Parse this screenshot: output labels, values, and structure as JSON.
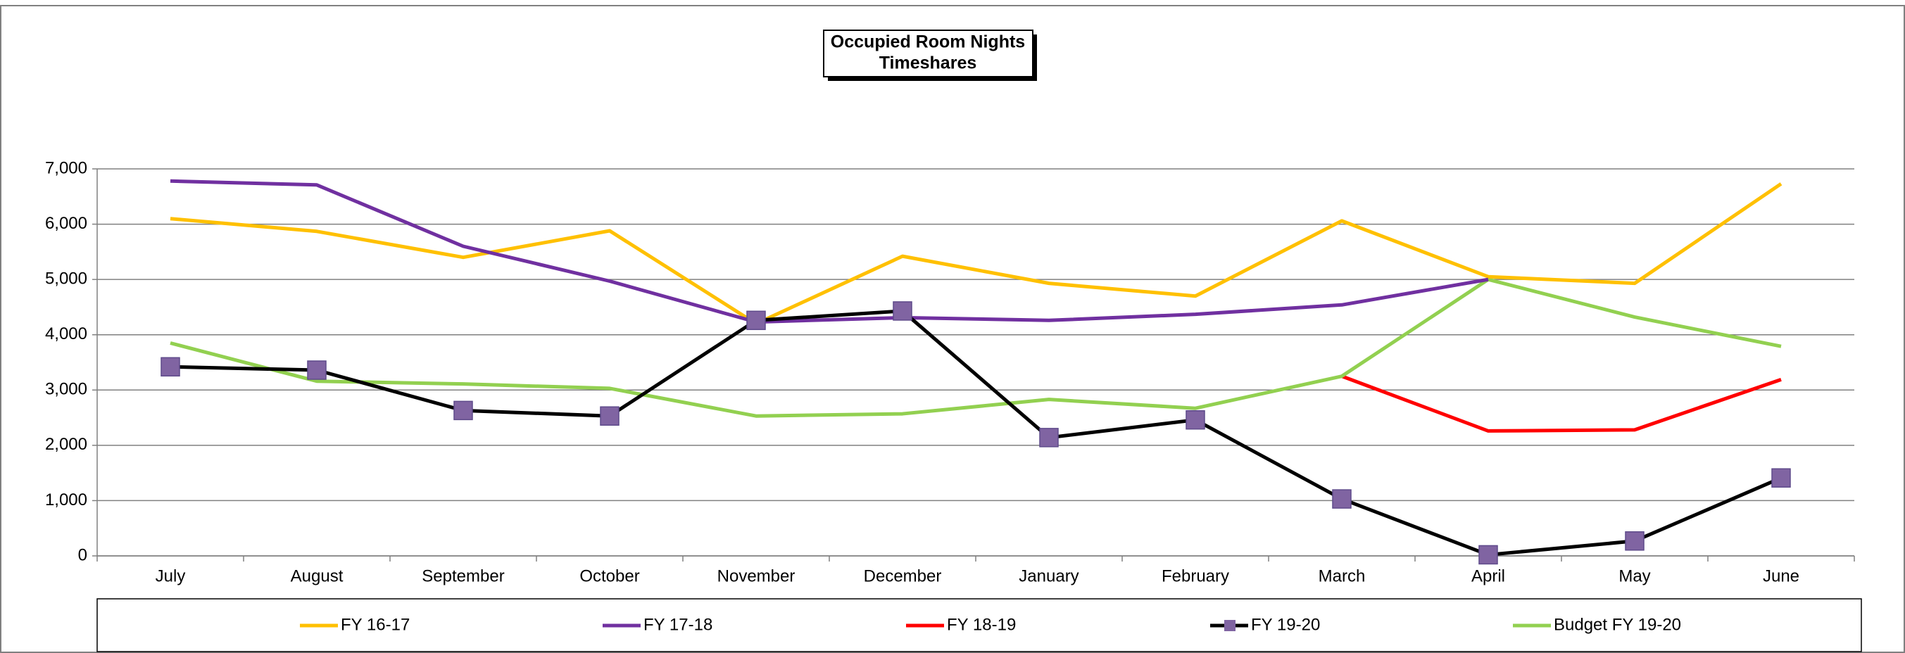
{
  "chart_data": {
    "type": "line",
    "title": "Occupied Room Nights",
    "subtitle": "Timeshares",
    "categories": [
      "July",
      "August",
      "September",
      "October",
      "November",
      "December",
      "January",
      "February",
      "March",
      "April",
      "May",
      "June"
    ],
    "series": [
      {
        "name": "FY 16-17",
        "color": "#ffc000",
        "values": [
          6100,
          5870,
          5400,
          5880,
          4200,
          5420,
          4930,
          4700,
          6060,
          5050,
          4930,
          6730
        ]
      },
      {
        "name": "FY 17-18",
        "color": "#7030a0",
        "values": [
          6780,
          6710,
          5600,
          4970,
          4230,
          4310,
          4260,
          4370,
          4540,
          5000,
          null,
          null
        ]
      },
      {
        "name": "FY 18-19",
        "color": "#ff0000",
        "values": [
          null,
          null,
          null,
          null,
          null,
          null,
          null,
          null,
          3250,
          2260,
          2280,
          3190
        ]
      },
      {
        "name": "FY 19-20",
        "color": "#000000",
        "marker_color": "#8064a2",
        "values": [
          3420,
          3360,
          2630,
          2530,
          4260,
          4430,
          2140,
          2460,
          1030,
          20,
          270,
          1410
        ]
      },
      {
        "name": "Budget FY 19-20",
        "color": "#92d050",
        "values": [
          3850,
          3160,
          3110,
          3030,
          2530,
          2570,
          2830,
          2670,
          3250,
          5000,
          4320,
          3790
        ]
      }
    ],
    "ylim": [
      0,
      7000
    ],
    "yticks": [
      0,
      {
        "value": 1000,
        "label": "1,000"
      },
      {
        "value": 2000,
        "label": "2,000"
      },
      {
        "value": 3000,
        "label": "3,000"
      },
      {
        "value": 4000,
        "label": "4,000"
      },
      {
        "value": 5000,
        "label": "5,000"
      },
      {
        "value": 6000,
        "label": "6,000"
      },
      {
        "value": 7000,
        "label": "7,000"
      }
    ],
    "grid": true,
    "legend": "bottom"
  }
}
